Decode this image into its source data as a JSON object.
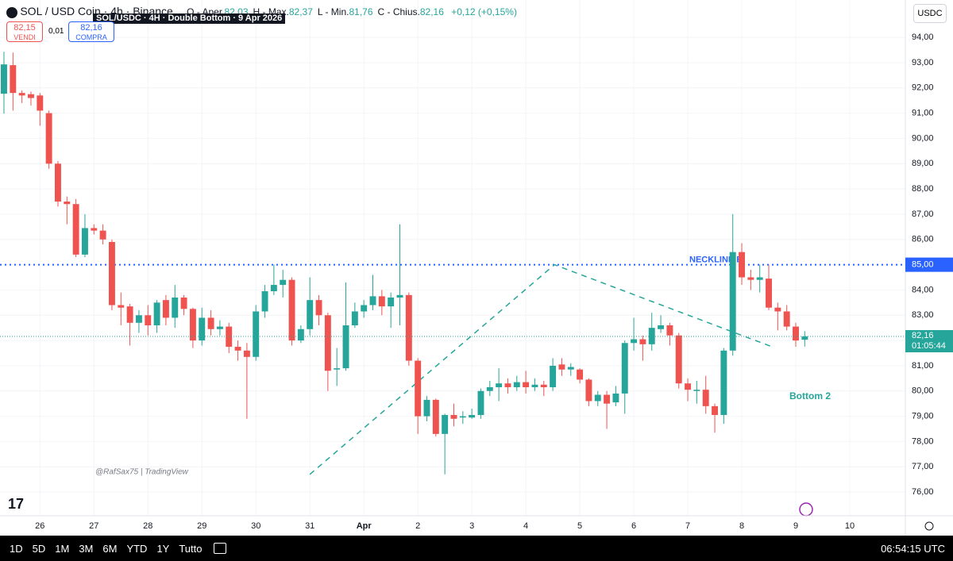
{
  "header": {
    "symbol": "SOL / USD Coin · 4h · Binance",
    "overlay_title": "SOL/USDC · 4H · Double Bottom · 9 Apr 2026",
    "ohlc": [
      {
        "label": "O - Aper.",
        "value": "82,03"
      },
      {
        "label": "H - Max.",
        "value": "82,37"
      },
      {
        "label": "L - Min.",
        "value": "81,76"
      },
      {
        "label": "C - Chius.",
        "value": "82,16"
      }
    ],
    "change": "+0,12 (+0,15%)"
  },
  "trade": {
    "sell_price": "82,15",
    "sell_label": "VENDI",
    "spread": "0,01",
    "buy_price": "82,16",
    "buy_label": "COMPRA"
  },
  "currency": "USDC",
  "watermark": "@RafSax75 | TradingView",
  "countdown": "01:05:44",
  "toolbar": {
    "ranges": [
      "1D",
      "5D",
      "1M",
      "3M",
      "6M",
      "YTD",
      "1Y",
      "Tutto"
    ],
    "clock": "06:54:15 UTC"
  },
  "chart_data": {
    "type": "candlestick",
    "x": [
      25.3333,
      25.5,
      25.6667,
      25.8333,
      26,
      26.1667,
      26.3333,
      26.5,
      26.6667,
      26.8333,
      27,
      27.1667,
      27.3333,
      27.5,
      27.6667,
      27.8333,
      28,
      28.1667,
      28.3333,
      28.5,
      28.6667,
      28.8333,
      29,
      29.1667,
      29.3333,
      29.5,
      29.6667,
      29.8333,
      30,
      30.1667,
      30.3333,
      30.5,
      30.6667,
      30.8333,
      31,
      31.1667,
      31.3333,
      31.5,
      31.6667,
      31.8333,
      32,
      32.1667,
      32.3333,
      32.5,
      32.6667,
      32.8333,
      33,
      33.1667,
      33.3333,
      33.5,
      33.6667,
      33.8333,
      34,
      34.1667,
      34.3333,
      34.5,
      34.6667,
      34.8333,
      35,
      35.1667,
      35.3333,
      35.5,
      35.6667,
      35.8333,
      36,
      36.1667,
      36.3333,
      36.5,
      36.6667,
      36.8333,
      37,
      37.1667,
      37.3333,
      37.5,
      37.6667,
      37.8333,
      38,
      38.1667,
      38.3333,
      38.5,
      38.6667,
      38.8333,
      39,
      39.1667,
      39.3333,
      39.5,
      39.6667,
      39.8333,
      40,
      40.1667
    ],
    "open": [
      91.77,
      92.9,
      91.8,
      91.75,
      91.7,
      91.0,
      89.0,
      87.5,
      87.4,
      85.4,
      86.45,
      86.35,
      85.9,
      83.4,
      83.35,
      82.7,
      83.0,
      82.6,
      83.6,
      82.9,
      83.7,
      83.25,
      82.0,
      82.9,
      82.45,
      82.55,
      81.75,
      81.6,
      81.35,
      83.15,
      83.95,
      84.2,
      84.4,
      82.0,
      82.45,
      83.6,
      83.0,
      80.85,
      80.9,
      82.6,
      83.15,
      83.4,
      83.75,
      83.35,
      83.7,
      83.8,
      81.2,
      79.0,
      79.65,
      78.3,
      79.05,
      78.95,
      78.95,
      79.05,
      80.0,
      80.15,
      80.3,
      80.15,
      80.35,
      80.15,
      80.25,
      80.15,
      81.05,
      80.85,
      80.85,
      80.45,
      79.6,
      79.85,
      79.55,
      79.9,
      81.9,
      82.05,
      81.85,
      82.45,
      82.6,
      82.2,
      80.3,
      80.0,
      80.05,
      79.4,
      79.05,
      81.6,
      85.5,
      84.5,
      84.4,
      84.45,
      83.3,
      83.15,
      82.55,
      82.03
    ],
    "high": [
      93.43,
      93.4,
      91.9,
      91.85,
      91.8,
      91.1,
      89.1,
      87.7,
      87.6,
      87.0,
      86.6,
      86.6,
      86.0,
      83.9,
      83.45,
      83.2,
      83.4,
      83.6,
      83.8,
      84.2,
      83.8,
      83.3,
      83.3,
      83.2,
      82.8,
      82.7,
      82.0,
      81.9,
      83.4,
      84.2,
      85.0,
      84.8,
      84.5,
      82.6,
      84.5,
      83.8,
      83.1,
      81.7,
      84.3,
      83.5,
      83.6,
      84.6,
      84.0,
      83.9,
      86.6,
      83.9,
      81.3,
      79.8,
      79.7,
      79.1,
      79.5,
      79.2,
      79.3,
      80.1,
      80.4,
      80.9,
      80.5,
      80.6,
      80.8,
      80.5,
      80.4,
      81.3,
      81.3,
      81.1,
      80.9,
      80.5,
      80.0,
      80.0,
      80.2,
      82.0,
      82.9,
      82.2,
      83.1,
      83.0,
      82.7,
      82.3,
      80.5,
      80.4,
      80.6,
      79.5,
      81.7,
      87.0,
      85.85,
      84.8,
      85.0,
      85.0,
      83.5,
      83.4,
      82.7,
      82.37
    ],
    "low": [
      90.98,
      91.1,
      91.4,
      91.3,
      90.5,
      88.8,
      87.3,
      86.6,
      85.3,
      85.3,
      86.2,
      85.8,
      83.2,
      82.6,
      81.8,
      82.3,
      82.2,
      82.3,
      82.6,
      82.5,
      83.0,
      81.7,
      81.8,
      82.2,
      82.2,
      81.5,
      81.2,
      78.9,
      81.2,
      82.9,
      83.8,
      83.7,
      81.8,
      81.9,
      82.2,
      82.6,
      80.0,
      80.2,
      80.8,
      82.5,
      82.9,
      83.2,
      83.0,
      82.5,
      82.6,
      81.0,
      78.3,
      78.8,
      78.2,
      76.7,
      78.6,
      78.7,
      78.9,
      78.9,
      79.8,
      79.6,
      79.9,
      80.0,
      79.9,
      80.0,
      79.8,
      80.0,
      80.6,
      80.6,
      80.3,
      79.4,
      79.4,
      78.5,
      79.4,
      79.1,
      81.6,
      81.2,
      81.6,
      82.3,
      81.8,
      80.1,
      79.6,
      79.5,
      79.1,
      78.35,
      78.7,
      81.4,
      84.2,
      84.0,
      83.9,
      83.2,
      82.4,
      82.4,
      81.75,
      81.76
    ],
    "close": [
      92.93,
      91.8,
      91.7,
      91.6,
      91.1,
      89.0,
      87.5,
      87.4,
      85.4,
      86.45,
      86.35,
      86.0,
      83.4,
      83.3,
      82.7,
      83.0,
      82.6,
      83.5,
      82.9,
      83.7,
      83.25,
      82.0,
      82.9,
      82.45,
      82.55,
      81.75,
      81.6,
      81.35,
      83.15,
      83.95,
      84.2,
      84.4,
      82.0,
      82.45,
      83.6,
      83.0,
      80.8,
      80.9,
      82.6,
      83.15,
      83.4,
      83.75,
      83.35,
      83.7,
      83.8,
      81.2,
      79.0,
      79.65,
      78.3,
      79.05,
      78.9,
      79.0,
      79.05,
      80.0,
      80.15,
      80.3,
      80.15,
      80.35,
      80.15,
      80.25,
      80.15,
      81.0,
      80.85,
      80.95,
      80.45,
      79.6,
      79.85,
      79.5,
      79.9,
      81.9,
      82.05,
      81.85,
      82.5,
      82.6,
      82.2,
      80.3,
      80.05,
      80.05,
      79.4,
      79.05,
      81.6,
      85.5,
      84.5,
      84.4,
      84.5,
      83.3,
      83.15,
      82.55,
      82.0,
      82.16
    ],
    "up_color": "#26a69a",
    "down_color": "#ef5350",
    "xlim": [
      25.26,
      42.03
    ],
    "ylim": [
      75.06,
      95.48
    ],
    "xticks": [
      26,
      27,
      28,
      29,
      30,
      31,
      {
        "value": 32,
        "label": "Apr"
      },
      {
        "value": 33,
        "label": "2"
      },
      {
        "value": 34,
        "label": "3"
      },
      {
        "value": 35,
        "label": "4"
      },
      {
        "value": 36,
        "label": "5"
      },
      {
        "value": 37,
        "label": "6"
      },
      {
        "value": 38,
        "label": "7"
      },
      {
        "value": 39,
        "label": "8"
      },
      {
        "value": 40,
        "label": "9"
      },
      {
        "value": 41,
        "label": "10"
      }
    ],
    "yticks": [
      {
        "value": 76,
        "label": "76,00"
      },
      {
        "value": 77,
        "label": "77,00"
      },
      {
        "value": 78,
        "label": "78,00"
      },
      {
        "value": 79,
        "label": "79,00"
      },
      {
        "value": 80,
        "label": "80,00"
      },
      {
        "value": 81,
        "label": "81,00"
      },
      {
        "value": 82,
        "label": "82,00"
      },
      {
        "value": 83,
        "label": "83,00"
      },
      {
        "value": 84,
        "label": "84,00"
      },
      {
        "value": 85,
        "label": "85,00"
      },
      {
        "value": 86,
        "label": "86,00"
      },
      {
        "value": 87,
        "label": "87,00"
      },
      {
        "value": 88,
        "label": "88,00"
      },
      {
        "value": 89,
        "label": "89,00"
      },
      {
        "value": 90,
        "label": "90,00"
      },
      {
        "value": 91,
        "label": "91,00"
      },
      {
        "value": 92,
        "label": "92,00"
      },
      {
        "value": 93,
        "label": "93,00"
      },
      {
        "value": 94,
        "label": "94,00"
      }
    ],
    "grid": true,
    "neckline": {
      "value": 85,
      "label": "85,00",
      "text": "NECKLINE B",
      "color": "#2962ff"
    },
    "pattern_line": {
      "x": [
        31,
        35.53,
        39.6
      ],
      "y": [
        76.7,
        85.0,
        81.72
      ],
      "color": "#26a69a"
    },
    "bottom_label": "Bottom 2"
  }
}
